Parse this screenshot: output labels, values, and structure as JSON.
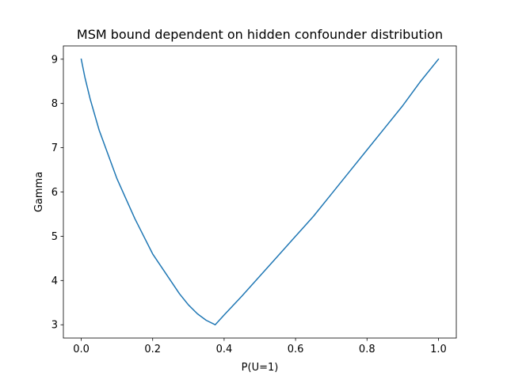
{
  "chart_data": {
    "type": "line",
    "title": "MSM bound dependent on hidden confounder distribution",
    "xlabel": "P(U=1)",
    "ylabel": "Gamma",
    "xlim": [
      -0.05,
      1.05
    ],
    "ylim": [
      2.7,
      9.3
    ],
    "grid": false,
    "x_ticks": [
      {
        "value": 0.0,
        "label": "0.0"
      },
      {
        "value": 0.2,
        "label": "0.2"
      },
      {
        "value": 0.4,
        "label": "0.4"
      },
      {
        "value": 0.6,
        "label": "0.6"
      },
      {
        "value": 0.8,
        "label": "0.8"
      },
      {
        "value": 1.0,
        "label": "1.0"
      }
    ],
    "y_ticks": [
      {
        "value": 3,
        "label": "3"
      },
      {
        "value": 4,
        "label": "4"
      },
      {
        "value": 5,
        "label": "5"
      },
      {
        "value": 6,
        "label": "6"
      },
      {
        "value": 7,
        "label": "7"
      },
      {
        "value": 8,
        "label": "8"
      },
      {
        "value": 9,
        "label": "9"
      }
    ],
    "series": [
      {
        "color": "#1f77b4",
        "x": [
          0.0,
          0.01,
          0.025,
          0.05,
          0.075,
          0.1,
          0.125,
          0.15,
          0.175,
          0.2,
          0.225,
          0.25,
          0.275,
          0.3,
          0.325,
          0.35,
          0.375,
          0.4,
          0.45,
          0.5,
          0.55,
          0.6,
          0.65,
          0.7,
          0.75,
          0.8,
          0.85,
          0.9,
          0.95,
          1.0
        ],
        "y": [
          9.0,
          8.6,
          8.1,
          7.4,
          6.85,
          6.3,
          5.85,
          5.4,
          5.0,
          4.6,
          4.3,
          4.0,
          3.7,
          3.45,
          3.25,
          3.1,
          3.0,
          3.22,
          3.65,
          4.1,
          4.55,
          5.0,
          5.45,
          5.95,
          6.45,
          6.95,
          7.45,
          7.95,
          8.5,
          9.0
        ]
      }
    ]
  }
}
